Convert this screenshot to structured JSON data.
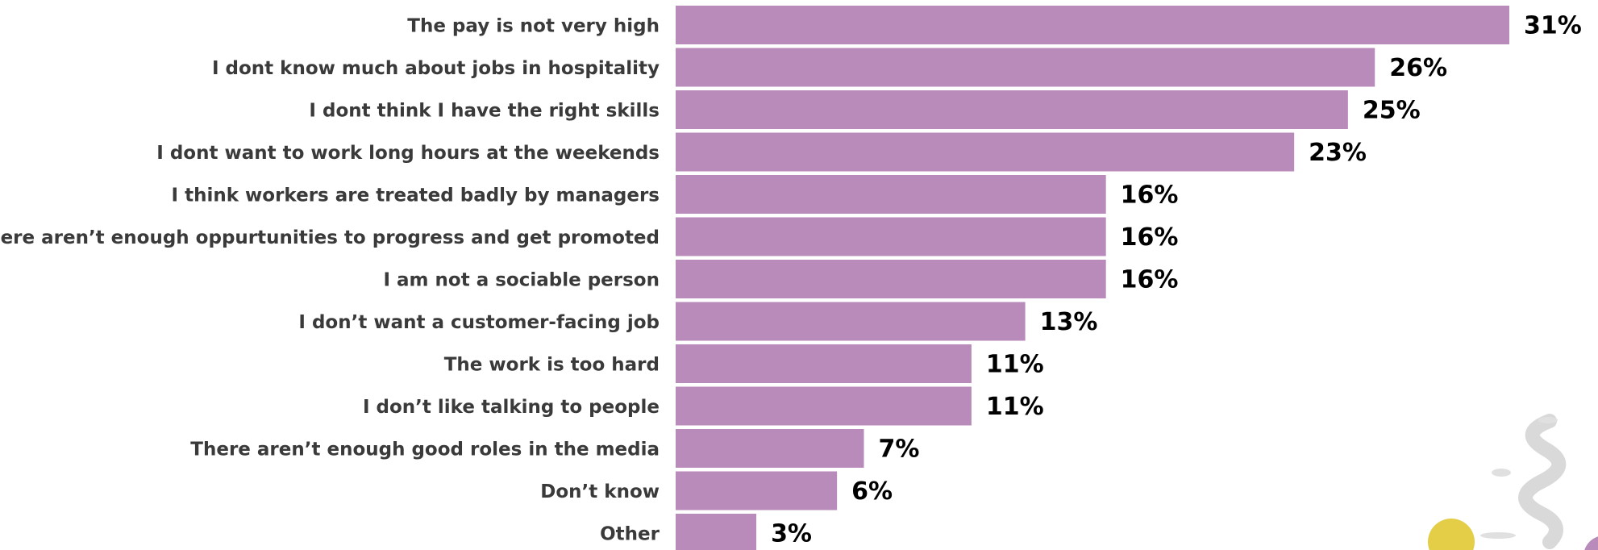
{
  "chart_data": {
    "type": "bar",
    "orientation": "horizontal",
    "categories": [
      "The pay is not very high",
      "I dont know much about jobs in hospitality",
      "I dont think I have the right skills",
      "I dont want to work long hours at the weekends",
      "I think workers are treated badly by managers",
      "There aren’t enough oppurtunities to progress and get promoted",
      "I am not a sociable person",
      "I don’t want a customer-facing job",
      "The work is too hard",
      "I don’t like talking to people",
      "There aren’t enough good roles in the media",
      "Don’t know",
      "Other"
    ],
    "values": [
      31,
      26,
      25,
      23,
      16,
      16,
      16,
      13,
      11,
      11,
      7,
      6,
      3
    ],
    "value_labels": [
      "31%",
      "26%",
      "25%",
      "23%",
      "16%",
      "16%",
      "16%",
      "13%",
      "11%",
      "11%",
      "7%",
      "6%",
      "3%"
    ],
    "color": "#b88bba"
  }
}
